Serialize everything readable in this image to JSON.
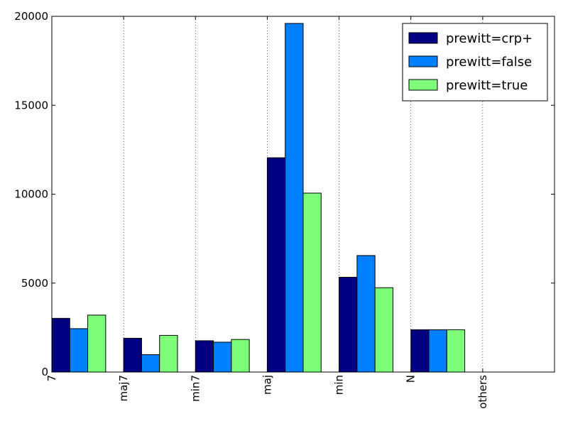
{
  "chart_data": {
    "type": "bar",
    "categories": [
      "7",
      "maj7",
      "min7",
      "maj",
      "min",
      "N",
      "others"
    ],
    "series": [
      {
        "name": "prewitt=crp+",
        "color": "#000080",
        "values": [
          3020,
          1900,
          1760,
          12050,
          5330,
          2380,
          0
        ]
      },
      {
        "name": "prewitt=false",
        "color": "#0080ff",
        "values": [
          2440,
          980,
          1680,
          19600,
          6550,
          2380,
          0
        ]
      },
      {
        "name": "prewitt=true",
        "color": "#7dff7a",
        "values": [
          3200,
          2060,
          1830,
          10060,
          4740,
          2380,
          0
        ]
      }
    ],
    "ylim": [
      0,
      20000
    ],
    "yticks": [
      0,
      5000,
      10000,
      15000,
      20000
    ],
    "xlim": [
      0,
      7
    ],
    "grid": "x dotted",
    "legend_position": "top-right",
    "title": "",
    "xlabel": "",
    "ylabel": ""
  }
}
